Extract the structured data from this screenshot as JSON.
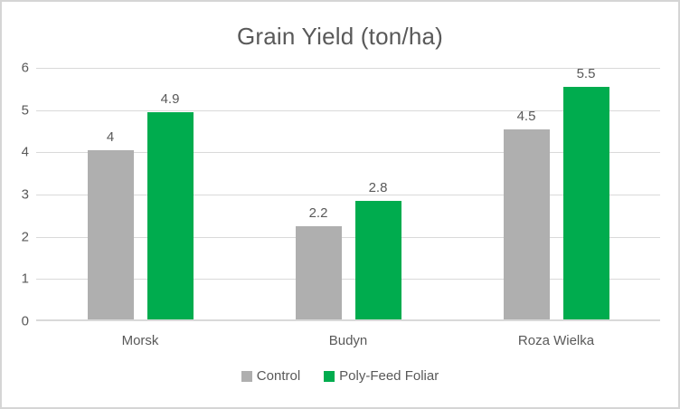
{
  "frame": {
    "background": "#ffffff",
    "border_color": "#d5d5d5"
  },
  "chart_data": {
    "type": "bar",
    "title": "Grain Yield (ton/ha)",
    "categories": [
      "Morsk",
      "Budyn",
      "Roza Wielka"
    ],
    "series": [
      {
        "name": "Control",
        "color": "#afafaf",
        "values": [
          4,
          2.2,
          4.5
        ],
        "data_labels": [
          "4",
          "2.2",
          "4.5"
        ]
      },
      {
        "name": "Poly-Feed Foliar",
        "color": "#00ac4e",
        "values": [
          4.9,
          2.8,
          5.5
        ],
        "data_labels": [
          "4.9",
          "2.8",
          "5.5"
        ]
      }
    ],
    "xlabel": "",
    "ylabel": "",
    "y_axis": {
      "min": 0,
      "max": 6,
      "step": 1,
      "tick_labels": [
        "0",
        "1",
        "2",
        "3",
        "4",
        "5",
        "6"
      ]
    },
    "grid": true,
    "legend_position": "bottom",
    "style": {
      "text_color": "#595959",
      "gridline_color": "#d9d9d9",
      "axis_line_color": "#d9d9d9"
    }
  }
}
